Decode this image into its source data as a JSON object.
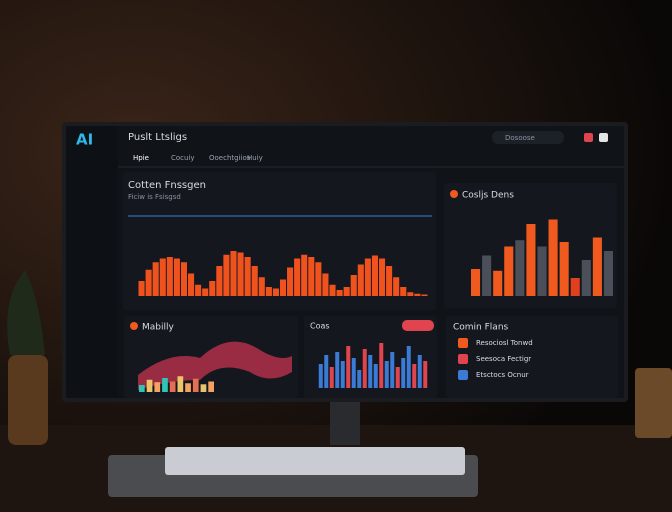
{
  "header": {
    "logo": "AI",
    "title": "Puslt Ltsligs",
    "search": "Dosoose"
  },
  "nav": [
    "Hpie",
    "Cocuiy",
    "Ooechtgiios",
    "Huiy"
  ],
  "main_panel": {
    "title": "Cotten Fnssgen",
    "subtitle": "Ficiw is Fsisgsd",
    "color": "#f0521e",
    "values": [
      20,
      35,
      45,
      50,
      52,
      50,
      45,
      30,
      15,
      10,
      20,
      40,
      55,
      60,
      58,
      52,
      40,
      25,
      12,
      10,
      22,
      38,
      50,
      55,
      52,
      45,
      30,
      15,
      8,
      12,
      28,
      42,
      50,
      54,
      50,
      40,
      25,
      12,
      5,
      3,
      2
    ]
  },
  "right_panel": {
    "title": "Cosljs Dens",
    "values": [
      30,
      45,
      28,
      55,
      62,
      80,
      55,
      85,
      60,
      20,
      40,
      65,
      50
    ],
    "colors": [
      "#f05a1e",
      "#4a4f5a",
      "#f05a1e",
      "#f05a1e",
      "#4a4f5a",
      "#f05a1e",
      "#4a4f5a",
      "#f05a1e",
      "#f05a1e",
      "#e0401e",
      "#4a4f5a",
      "#f05a1e",
      "#4a4f5a"
    ]
  },
  "mobility_panel": {
    "title": "Mabilly",
    "values": [
      20,
      35,
      28,
      40,
      30,
      45,
      25,
      38,
      22,
      30
    ],
    "colors": [
      "#2ec4b6",
      "#e9c46a",
      "#f4a261",
      "#2ec4b6",
      "#e76f51",
      "#e9c46a",
      "#f4a261",
      "#e76f51",
      "#e9c46a",
      "#f4a261"
    ]
  },
  "coas_panel": {
    "title": "Coas",
    "values": [
      40,
      55,
      35,
      60,
      45,
      70,
      50,
      30,
      65,
      55,
      40,
      75,
      45,
      60,
      35,
      50,
      70,
      40,
      55,
      45
    ],
    "colors": [
      "#3a7bd5",
      "#3a7bd5",
      "#e0444e",
      "#3a7bd5",
      "#3a7bd5",
      "#e0444e",
      "#3a7bd5",
      "#3a7bd5",
      "#e0444e",
      "#3a7bd5",
      "#3a7bd5",
      "#e0444e",
      "#3a7bd5",
      "#3a7bd5",
      "#e0444e",
      "#3a7bd5",
      "#3a7bd5",
      "#e0444e",
      "#3a7bd5",
      "#e0444e"
    ]
  },
  "list_panel": {
    "title": "Comin Flans",
    "items": [
      "Resociosl Tonwd",
      "Seesoca Fectigr",
      "Etsctocs Ocnur"
    ]
  }
}
